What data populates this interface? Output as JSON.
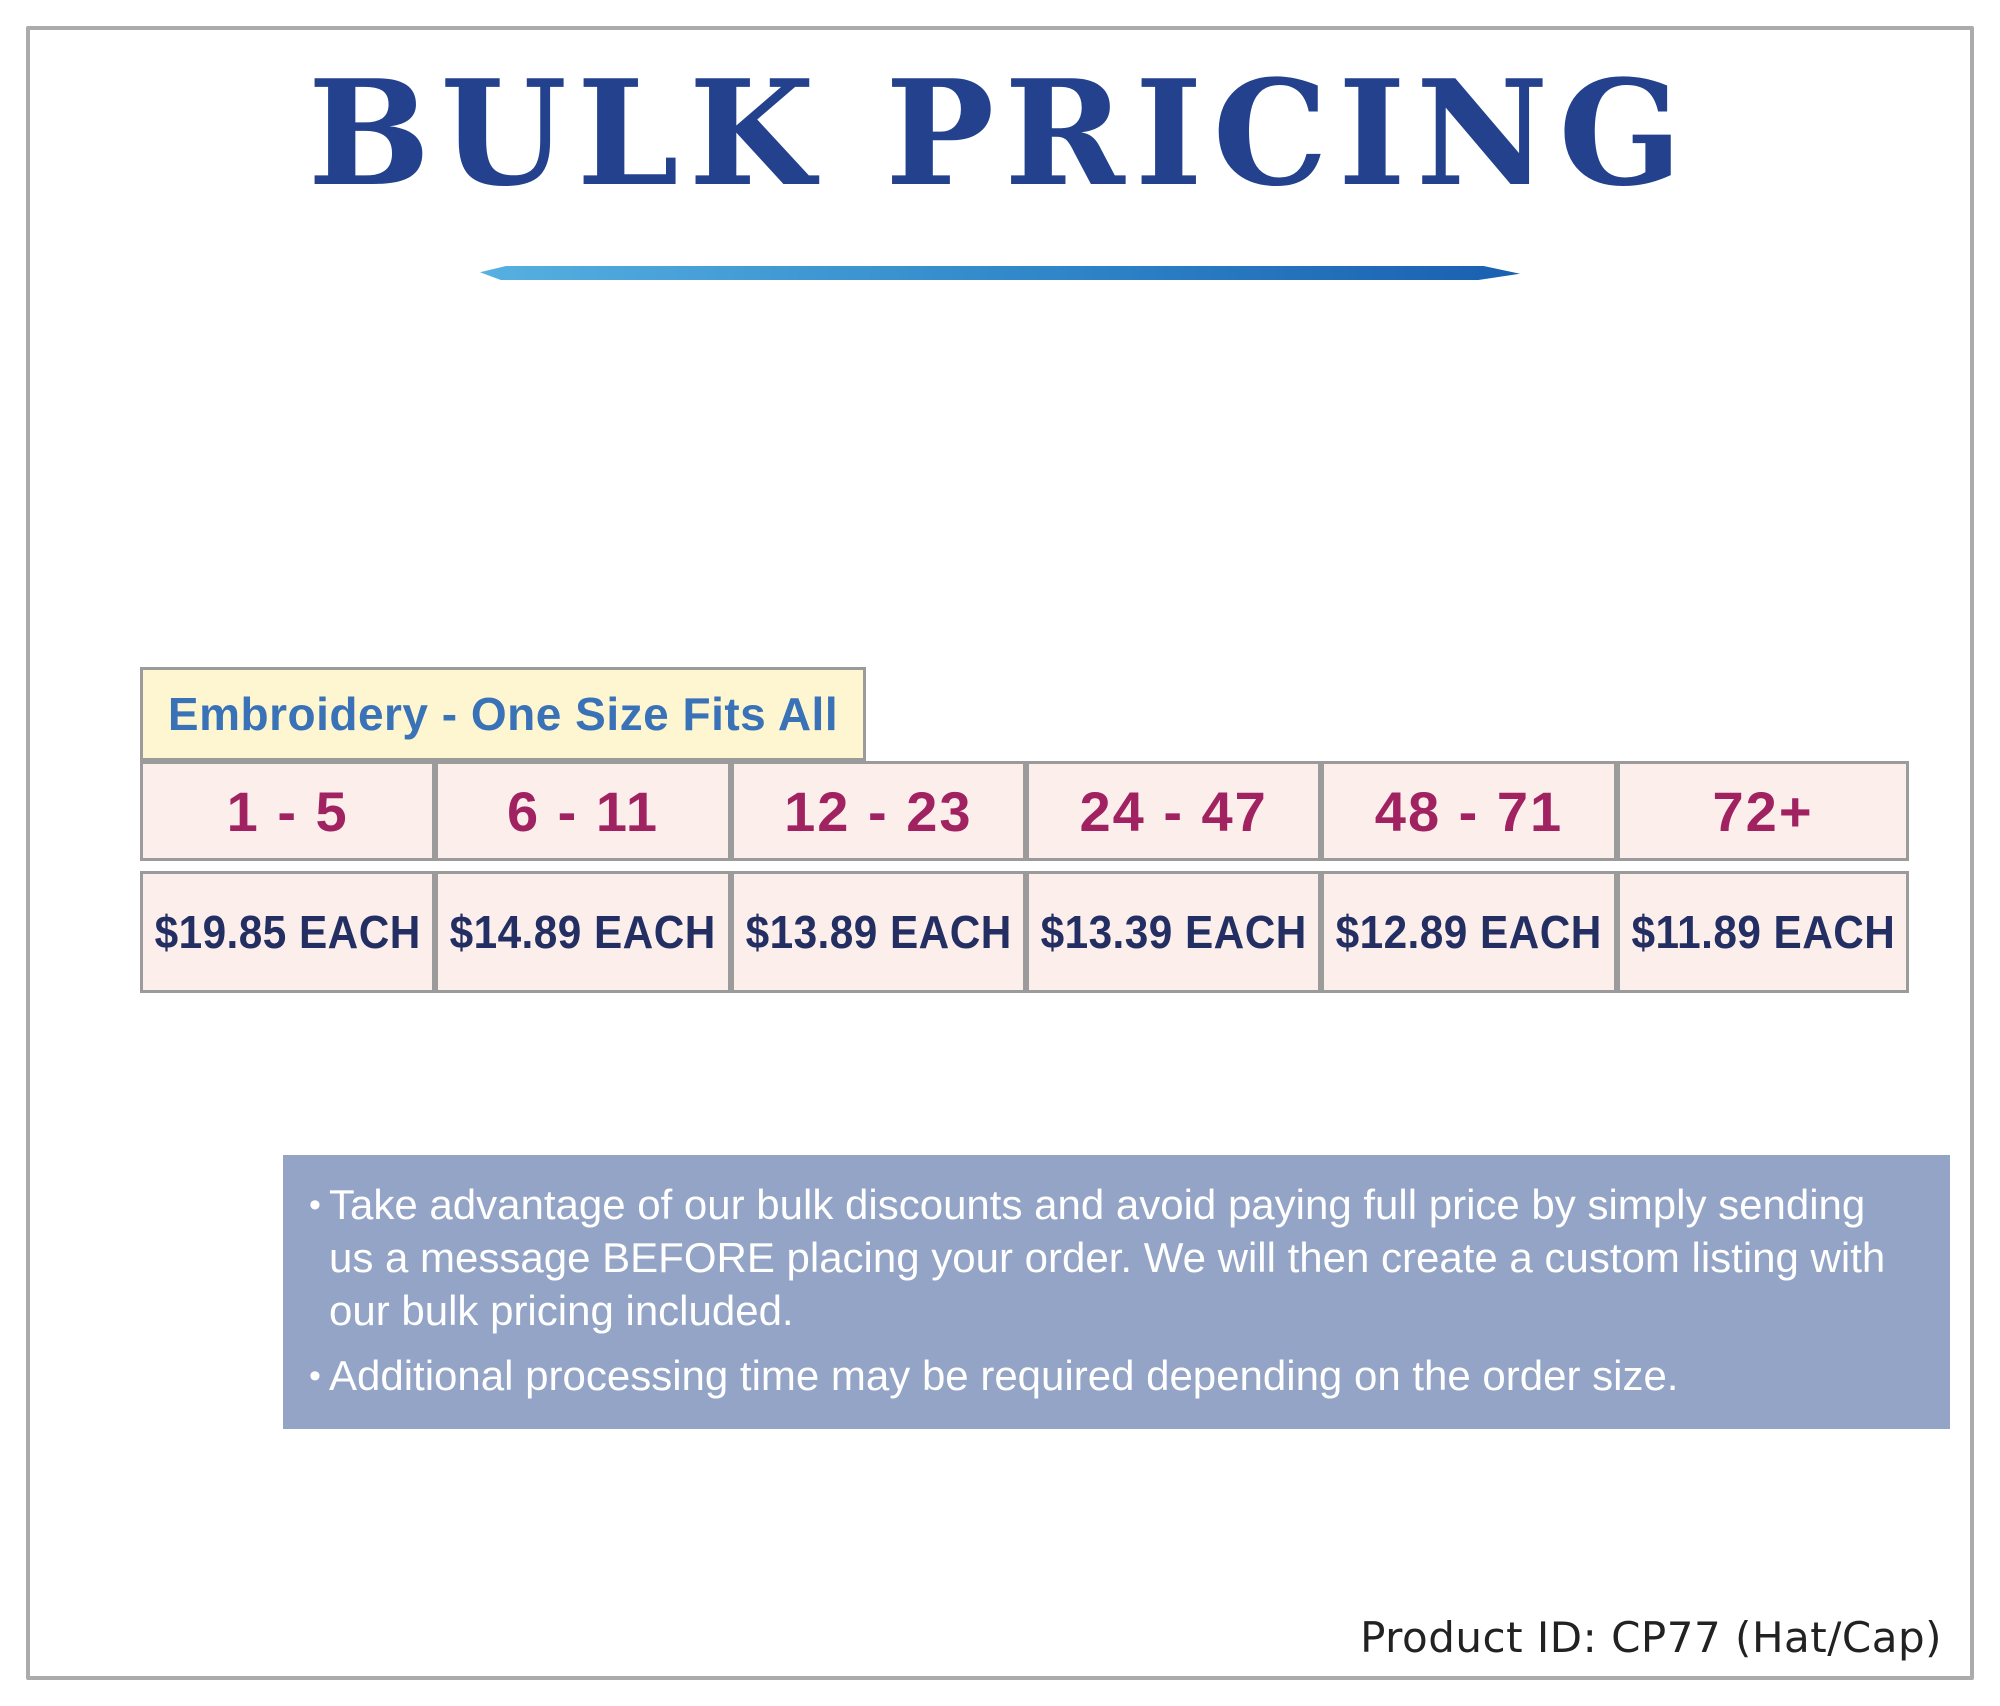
{
  "title": {
    "text": "BULK PRICING"
  },
  "table": {
    "header_label": "Embroidery - One Size Fits All",
    "tiers": [
      {
        "range": "1 - 5",
        "price": "$19.85 EACH"
      },
      {
        "range": "6 - 11",
        "price": "$14.89 EACH"
      },
      {
        "range": "12 - 23",
        "price": "$13.89 EACH"
      },
      {
        "range": "24 - 47",
        "price": "$13.39 EACH"
      },
      {
        "range": "48 - 71",
        "price": "$12.89 EACH"
      },
      {
        "range": "72+",
        "price": "$11.89 EACH"
      }
    ]
  },
  "notes": {
    "bullet_char": "•",
    "items": [
      "Take advantage of our bulk discounts and avoid paying full price by simply sending us a message BEFORE placing your order. We will then create a custom listing with our bulk pricing included.",
      "Additional processing time may be required depending on the order size."
    ]
  },
  "footer": {
    "product_id": "Product ID: CP77 (Hat/Cap)"
  },
  "colors": {
    "title_blue": "#24418e",
    "underline_gradient_start": "#56b0e0",
    "underline_gradient_end": "#1a5fb0",
    "category_header_bg": "#fdf6d0",
    "category_header_text": "#3a72b8",
    "cell_bg": "#fbeeeb",
    "cell_border": "#9b9b9b",
    "range_text": "#a02260",
    "price_text": "#232e62",
    "notes_bg": "#93a4c7",
    "notes_text": "#ffffff",
    "page_border": "#ababab"
  }
}
